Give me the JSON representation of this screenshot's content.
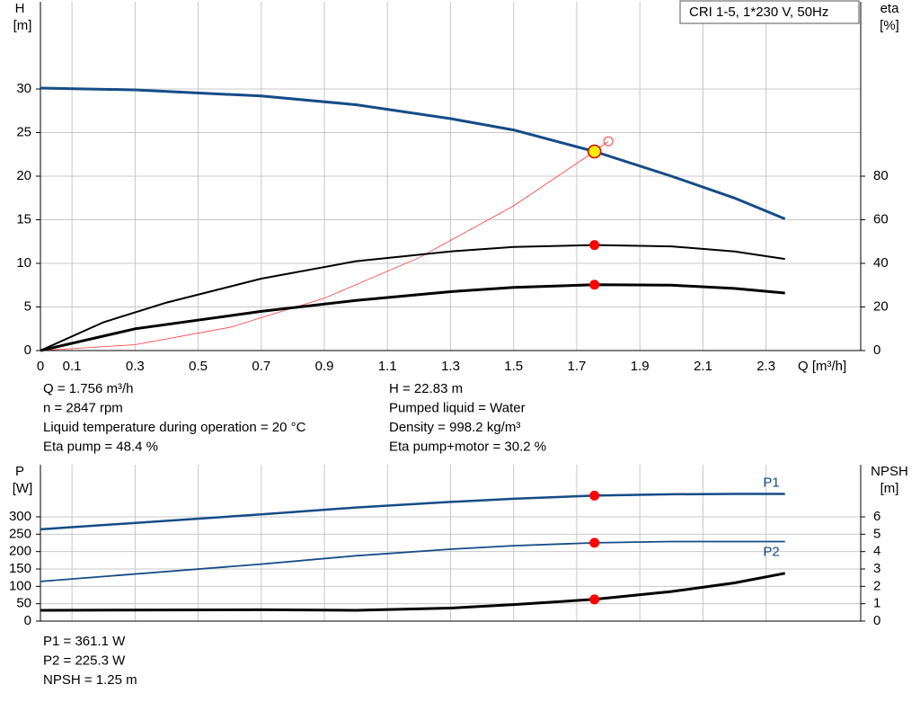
{
  "chart_data": [
    {
      "type": "line",
      "title": "CRI 1-5, 1*230 V, 50Hz",
      "ylabel": "H",
      "yunit": "[m]",
      "y2label": "eta",
      "y2unit": "[%]",
      "xlabel": "Q [m³/h]",
      "xlim": [
        0,
        2.6
      ],
      "xticks": [
        0,
        0.1,
        0.3,
        0.5,
        0.7,
        0.9,
        1.1,
        1.3,
        1.5,
        1.7,
        1.9,
        2.1,
        2.3
      ],
      "ylim": [
        0,
        40
      ],
      "yticks": [
        0,
        5,
        10,
        15,
        20,
        25,
        30
      ],
      "y2lim": [
        0,
        160
      ],
      "y2ticks": [
        0,
        20,
        40,
        60,
        80
      ],
      "grid": true,
      "duty_point": 1.756,
      "series": [
        {
          "color": "#ff3b3b",
          "width": 0.8,
          "marker": "#ff2020",
          "end_marker": "open",
          "x": [
            0,
            0.3,
            0.6,
            0.9,
            1.2,
            1.5,
            1.756,
            1.8
          ],
          "values": [
            0,
            0.67,
            2.66,
            6,
            10.65,
            16.6,
            22.83,
            24
          ]
        },
        {
          "color": "#154b87",
          "width": 3,
          "marker": "#ffee00",
          "x": [
            0,
            0.3,
            0.7,
            1.0,
            1.3,
            1.5,
            1.756,
            2.0,
            2.2,
            2.36
          ],
          "values": [
            30.1,
            29.9,
            29.2,
            28.2,
            26.6,
            25.3,
            22.83,
            20,
            17.5,
            15.1
          ]
        },
        {
          "color": "#000000",
          "width": 2,
          "axis": "y2",
          "marker": "#ff0000",
          "x": [
            0,
            0.2,
            0.4,
            0.7,
            1.0,
            1.3,
            1.5,
            1.756,
            2.0,
            2.2,
            2.36
          ],
          "values": [
            0,
            13,
            22,
            33,
            41,
            45.5,
            47.5,
            48.4,
            47.8,
            45.5,
            42
          ]
        },
        {
          "color": "#000000",
          "width": 3,
          "axis": "y2",
          "marker": "#ff0000",
          "x": [
            0,
            0.3,
            0.7,
            1.0,
            1.3,
            1.5,
            1.756,
            2.0,
            2.2,
            2.36
          ],
          "values": [
            0,
            10,
            18,
            23,
            27,
            29,
            30.2,
            30,
            28.5,
            26.4
          ]
        }
      ],
      "info": [
        "Q = 1.756 m³/h",
        "n = 2847 rpm",
        "Liquid temperature during operation = 20 °C",
        "Eta pump = 48.4 %",
        "H = 22.83 m",
        "Pumped liquid = Water",
        "Density = 998.2 kg/m³",
        "Eta pump+motor = 30.2 %"
      ]
    },
    {
      "type": "line",
      "ylabel": "P",
      "yunit": "[W]",
      "y2label": "NPSH",
      "y2unit": "[m]",
      "xlim": [
        0,
        2.6
      ],
      "xticks": [
        0,
        0.1,
        0.3,
        0.5,
        0.7,
        0.9,
        1.1,
        1.3,
        1.5,
        1.7,
        1.9,
        2.1,
        2.3
      ],
      "ylim": [
        0,
        450
      ],
      "yticks": [
        0,
        50,
        100,
        150,
        200,
        250,
        300
      ],
      "y2lim": [
        0,
        9
      ],
      "y2ticks": [
        0,
        1,
        2,
        3,
        4,
        5,
        6
      ],
      "grid": true,
      "duty_point": 1.756,
      "series": [
        {
          "name": "P1",
          "color": "#154b87",
          "width": 2.5,
          "marker": "#ff0000",
          "x": [
            0,
            0.7,
            1.0,
            1.3,
            1.5,
            1.756,
            2.0,
            2.2,
            2.36
          ],
          "values": [
            264,
            307,
            327,
            343,
            352,
            361.1,
            365,
            366,
            366
          ]
        },
        {
          "name": "P2",
          "color": "#154b87",
          "width": 1.8,
          "marker": "#ff0000",
          "x": [
            0,
            0.7,
            1.0,
            1.3,
            1.5,
            1.756,
            2.0,
            2.36
          ],
          "values": [
            114,
            164,
            188,
            207,
            217,
            225.3,
            229,
            229
          ]
        },
        {
          "color": "#000000",
          "width": 3,
          "axis": "y2",
          "marker": "#ff0000",
          "x": [
            0,
            0.7,
            1.0,
            1.3,
            1.5,
            1.756,
            2.0,
            2.2,
            2.36
          ],
          "values": [
            0.62,
            0.65,
            0.62,
            0.75,
            0.95,
            1.25,
            1.7,
            2.2,
            2.75
          ]
        }
      ],
      "info": [
        "P1 = 361.1 W",
        "P2 = 225.3 W",
        "NPSH = 1.25 m"
      ]
    }
  ]
}
